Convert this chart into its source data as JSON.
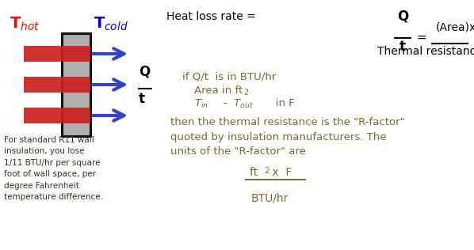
{
  "bg_color": "#ffffff",
  "wall_face": "#b0b0b0",
  "wall_edge": "#111111",
  "red_bar": "#cc2020",
  "blue_arrow": "#3344cc",
  "text_black": "#000000",
  "text_tan": "#7a6a30",
  "text_red": "#ff0000",
  "text_blue": "#0000ff",
  "bottom_text": "For standard R11 wall\ninsulation, you lose\n1/11 BTU/hr per square\nfoot of wall space, per\ndegree Fahrenheit\ntemperature difference.",
  "then_text_line1": "then the thermal resistance is the \"R-factor\"",
  "then_text_line2": "quoted by insulation manufacturers. The",
  "then_text_line3": "units of the \"R-factor\" are"
}
